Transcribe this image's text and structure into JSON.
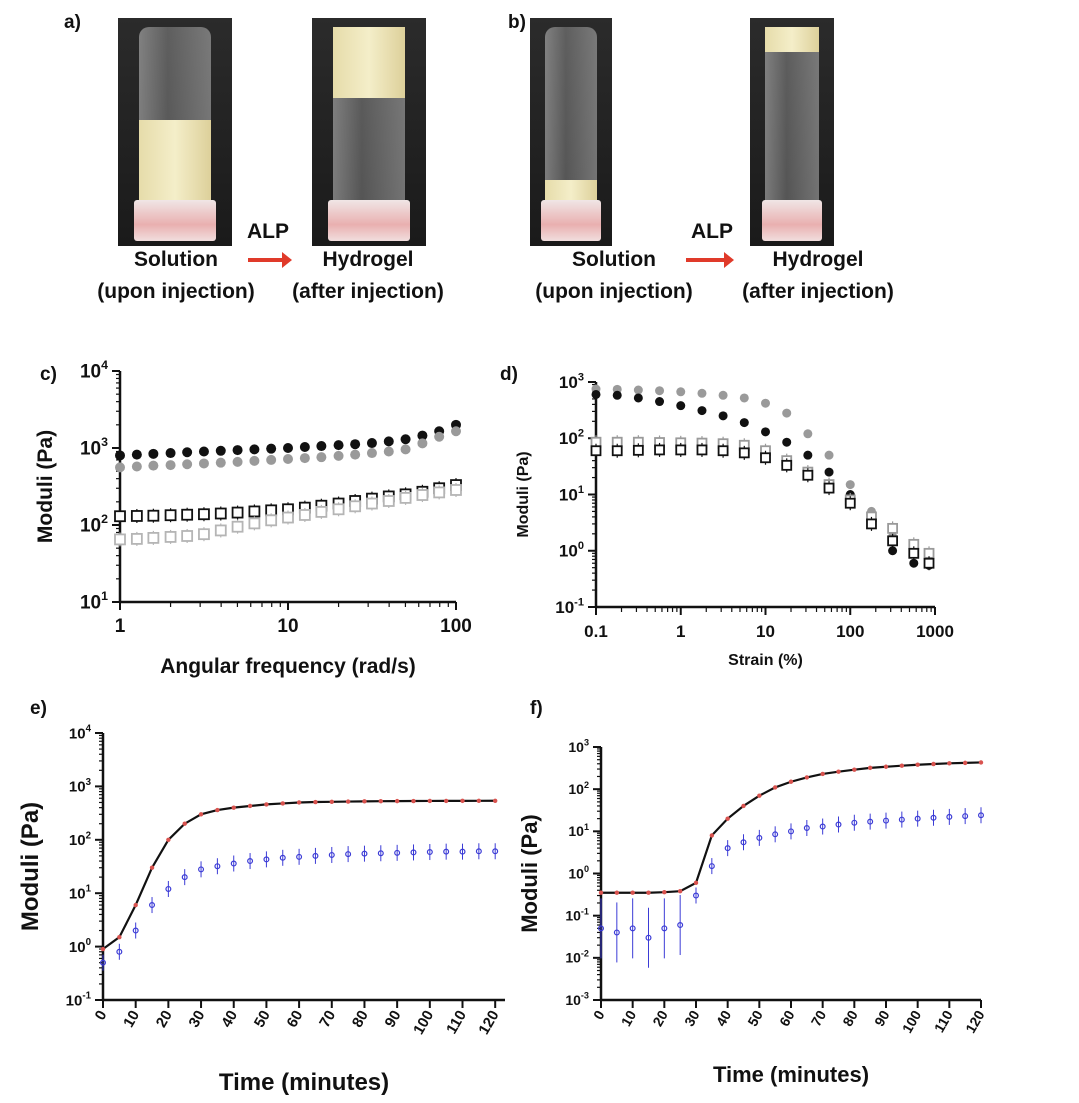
{
  "panel_a": {
    "label": "a)",
    "left_caption": [
      "Solution",
      "(upon injection)"
    ],
    "arrow_label": "ALP",
    "right_caption": [
      "Hydrogel",
      "(after injection)"
    ]
  },
  "panel_b": {
    "label": "b)",
    "left_caption": [
      "Solution",
      "(upon injection)"
    ],
    "arrow_label": "ALP",
    "right_caption": [
      "Hydrogel",
      "(after injection)"
    ]
  },
  "colors": {
    "arrow": "#e03a2a",
    "black": "#111111",
    "gray": "#9a9a9a",
    "red": "#d9534f",
    "blue": "#3b3bd6"
  },
  "chart_data": [
    {
      "id": "c",
      "panel_label": "c)",
      "type": "scatter",
      "xlabel": "Angular frequency (rad/s)",
      "ylabel": "Moduli (Pa)",
      "xscale": "log",
      "yscale": "log",
      "xlim": [
        1,
        100
      ],
      "ylim": [
        10,
        10000
      ],
      "xticks": [
        "1",
        "10",
        "100"
      ],
      "yticks_exp": [
        1,
        2,
        3,
        4
      ],
      "x": [
        1,
        1.26,
        1.58,
        2,
        2.51,
        3.16,
        3.98,
        5.01,
        6.31,
        7.94,
        10,
        12.6,
        15.8,
        20,
        25.1,
        31.6,
        39.8,
        50.1,
        63.1,
        79.4,
        100
      ],
      "series": [
        {
          "marker": "filled-circle",
          "color": "#111111",
          "values": [
            800,
            820,
            840,
            860,
            880,
            900,
            920,
            940,
            960,
            980,
            1000,
            1030,
            1060,
            1090,
            1120,
            1160,
            1220,
            1300,
            1450,
            1650,
            2000
          ]
        },
        {
          "marker": "filled-circle",
          "color": "#9a9a9a",
          "values": [
            560,
            575,
            590,
            600,
            615,
            630,
            645,
            660,
            680,
            700,
            720,
            740,
            760,
            790,
            820,
            860,
            900,
            960,
            1150,
            1400,
            1650
          ]
        },
        {
          "marker": "open-square",
          "color": "#111111",
          "values": [
            130,
            131,
            132,
            134,
            136,
            138,
            141,
            145,
            150,
            155,
            160,
            168,
            178,
            190,
            205,
            220,
            235,
            250,
            270,
            300,
            330
          ]
        },
        {
          "marker": "open-square",
          "color": "#b5b5b5",
          "values": [
            65,
            66,
            68,
            70,
            72,
            76,
            85,
            95,
            105,
            115,
            125,
            135,
            148,
            160,
            175,
            190,
            205,
            225,
            245,
            265,
            285
          ]
        }
      ]
    },
    {
      "id": "d",
      "panel_label": "d)",
      "type": "scatter",
      "xlabel": "Strain (%)",
      "ylabel": "Moduli (Pa)",
      "xscale": "log",
      "yscale": "log",
      "xlim": [
        0.1,
        1000
      ],
      "ylim": [
        0.1,
        1000
      ],
      "xticks": [
        "0.1",
        "1",
        "10",
        "100",
        "1000"
      ],
      "yticks_exp": [
        -1,
        0,
        1,
        2,
        3
      ],
      "x": [
        0.1,
        0.178,
        0.316,
        0.562,
        1,
        1.78,
        3.16,
        5.62,
        10,
        17.8,
        31.6,
        56.2,
        100,
        178,
        316,
        562,
        850
      ],
      "series": [
        {
          "marker": "filled-circle",
          "color": "#9a9a9a",
          "values": [
            750,
            740,
            720,
            700,
            670,
            630,
            580,
            520,
            420,
            280,
            120,
            50,
            15,
            5,
            1.8,
            1,
            0.8
          ]
        },
        {
          "marker": "filled-circle",
          "color": "#111111",
          "values": [
            600,
            580,
            520,
            450,
            380,
            310,
            250,
            190,
            130,
            85,
            50,
            25,
            10,
            3,
            1,
            0.6,
            0.55
          ]
        },
        {
          "marker": "open-square",
          "color": "#9a9a9a",
          "values": [
            85,
            85,
            85,
            84,
            83,
            82,
            80,
            75,
            60,
            40,
            25,
            15,
            8,
            4,
            2.5,
            1.3,
            0.9
          ]
        },
        {
          "marker": "open-square",
          "color": "#111111",
          "values": [
            60,
            60,
            61,
            62,
            62,
            62,
            60,
            55,
            45,
            33,
            22,
            13,
            7,
            3,
            1.5,
            0.9,
            0.6
          ]
        }
      ]
    },
    {
      "id": "e",
      "panel_label": "e)",
      "type": "line",
      "xlabel": "Time (minutes)",
      "ylabel": "Moduli (Pa)",
      "xscale": "linear",
      "yscale": "log",
      "xlim": [
        0,
        123
      ],
      "ylim": [
        0.1,
        10000
      ],
      "xticks": [
        "0",
        "10",
        "20",
        "30",
        "40",
        "50",
        "60",
        "70",
        "80",
        "90",
        "100",
        "110",
        "120"
      ],
      "yticks_exp": [
        -1,
        0,
        1,
        2,
        3,
        4
      ],
      "x": [
        0,
        5,
        10,
        15,
        20,
        25,
        30,
        35,
        40,
        45,
        50,
        55,
        60,
        65,
        70,
        75,
        80,
        85,
        90,
        95,
        100,
        105,
        110,
        115,
        120
      ],
      "series": [
        {
          "marker": "line-red-points",
          "color": "#d9534f",
          "values": [
            0.9,
            1.5,
            6,
            30,
            100,
            200,
            300,
            360,
            400,
            430,
            460,
            480,
            500,
            510,
            515,
            520,
            525,
            528,
            530,
            532,
            534,
            535,
            536,
            537,
            538
          ]
        },
        {
          "marker": "blue-errorbar-points",
          "color": "#3b3bd6",
          "values": [
            0.5,
            0.8,
            2,
            6,
            12,
            20,
            28,
            32,
            36,
            40,
            43,
            46,
            48,
            50,
            52,
            54,
            55,
            56,
            57,
            58,
            59,
            60,
            60,
            61,
            61
          ]
        }
      ]
    },
    {
      "id": "f",
      "panel_label": "f)",
      "type": "line",
      "xlabel": "Time (minutes)",
      "ylabel": "Moduli (Pa)",
      "xscale": "linear",
      "yscale": "log",
      "xlim": [
        0,
        120
      ],
      "ylim": [
        0.001,
        1000
      ],
      "xticks": [
        "0",
        "10",
        "20",
        "30",
        "40",
        "50",
        "60",
        "70",
        "80",
        "90",
        "100",
        "110",
        "120"
      ],
      "yticks_exp": [
        -3,
        -2,
        -1,
        0,
        1,
        2,
        3
      ],
      "x": [
        0,
        5,
        10,
        15,
        20,
        25,
        30,
        35,
        40,
        45,
        50,
        55,
        60,
        65,
        70,
        75,
        80,
        85,
        90,
        95,
        100,
        105,
        110,
        115,
        120
      ],
      "series": [
        {
          "marker": "line-red-points",
          "color": "#d9534f",
          "values": [
            0.35,
            0.35,
            0.35,
            0.35,
            0.36,
            0.38,
            0.6,
            8,
            20,
            40,
            70,
            110,
            150,
            190,
            230,
            260,
            290,
            320,
            340,
            360,
            380,
            395,
            410,
            420,
            430
          ]
        },
        {
          "marker": "blue-errorbar-points",
          "color": "#3b3bd6",
          "values": [
            0.05,
            0.04,
            0.05,
            0.03,
            0.05,
            0.06,
            0.3,
            1.5,
            4,
            5.5,
            7,
            8.5,
            10,
            12,
            13,
            14.5,
            16,
            17,
            18,
            19,
            20,
            21,
            22,
            23,
            24
          ]
        }
      ]
    }
  ]
}
